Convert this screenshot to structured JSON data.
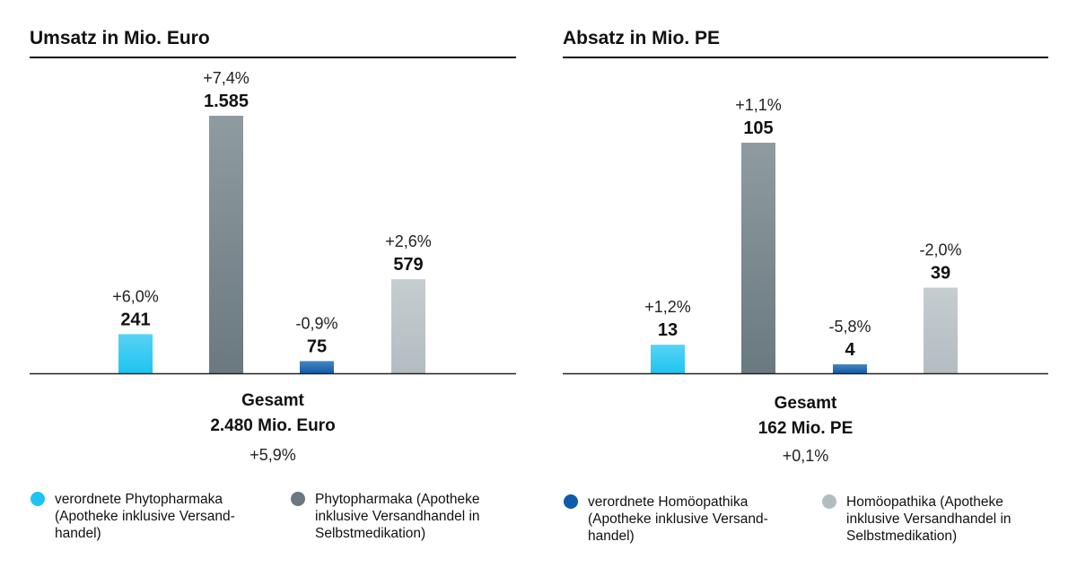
{
  "chart_data": [
    {
      "type": "bar",
      "title": "Umsatz in Mio. Euro",
      "categories": [
        "verordnete Phytopharmaka",
        "Phytopharmaka",
        "verordnete Homöopathika",
        "Homöopathika"
      ],
      "values": [
        241,
        1585,
        75,
        579
      ],
      "value_labels": [
        "241",
        "1.585",
        "75",
        "579"
      ],
      "change_labels": [
        "+6,0%",
        "+7,4%",
        "-0,9%",
        "+2,6%"
      ],
      "colors": [
        "#1ec4f1",
        "#6a7980",
        "#0d5cab",
        "#b3bcc1"
      ],
      "ylim": [
        0,
        1585
      ],
      "xlabel": "",
      "ylabel": "",
      "total": {
        "label": "Gesamt",
        "value": "2.480 Mio. Euro",
        "change": "+5,9%"
      },
      "legend": [
        {
          "text": "verordnete Phytopharmaka\n(Apotheke inklusive Versand-\nhandel)",
          "color": "#1ec4f1"
        },
        {
          "text": "Phytopharmaka (Apotheke\ninklusive Versandhandel in\nSelbstmedikation)",
          "color": "#6a7980"
        }
      ]
    },
    {
      "type": "bar",
      "title": "Absatz in Mio. PE",
      "categories": [
        "verordnete Phytopharmaka",
        "Phytopharmaka",
        "verordnete Homöopathika",
        "Homöopathika"
      ],
      "values": [
        13,
        105,
        4,
        39
      ],
      "value_labels": [
        "13",
        "105",
        "4",
        "39"
      ],
      "change_labels": [
        "+1,2%",
        "+1,1%",
        "-5,8%",
        "-2,0%"
      ],
      "colors": [
        "#1ec4f1",
        "#6a7980",
        "#0d5cab",
        "#b3bcc1"
      ],
      "ylim": [
        0,
        105
      ],
      "xlabel": "",
      "ylabel": "",
      "total": {
        "label": "Gesamt",
        "value": "162 Mio. PE",
        "change": "+0,1%"
      },
      "legend": [
        {
          "text": "verordnete Homöopathika\n(Apotheke inklusive Versand-\nhandel)",
          "color": "#0d5cab"
        },
        {
          "text": "Homöopathika (Apotheke\ninklusive Versandhandel in\nSelbstmedikation)",
          "color": "#b3bcc1"
        }
      ]
    }
  ]
}
